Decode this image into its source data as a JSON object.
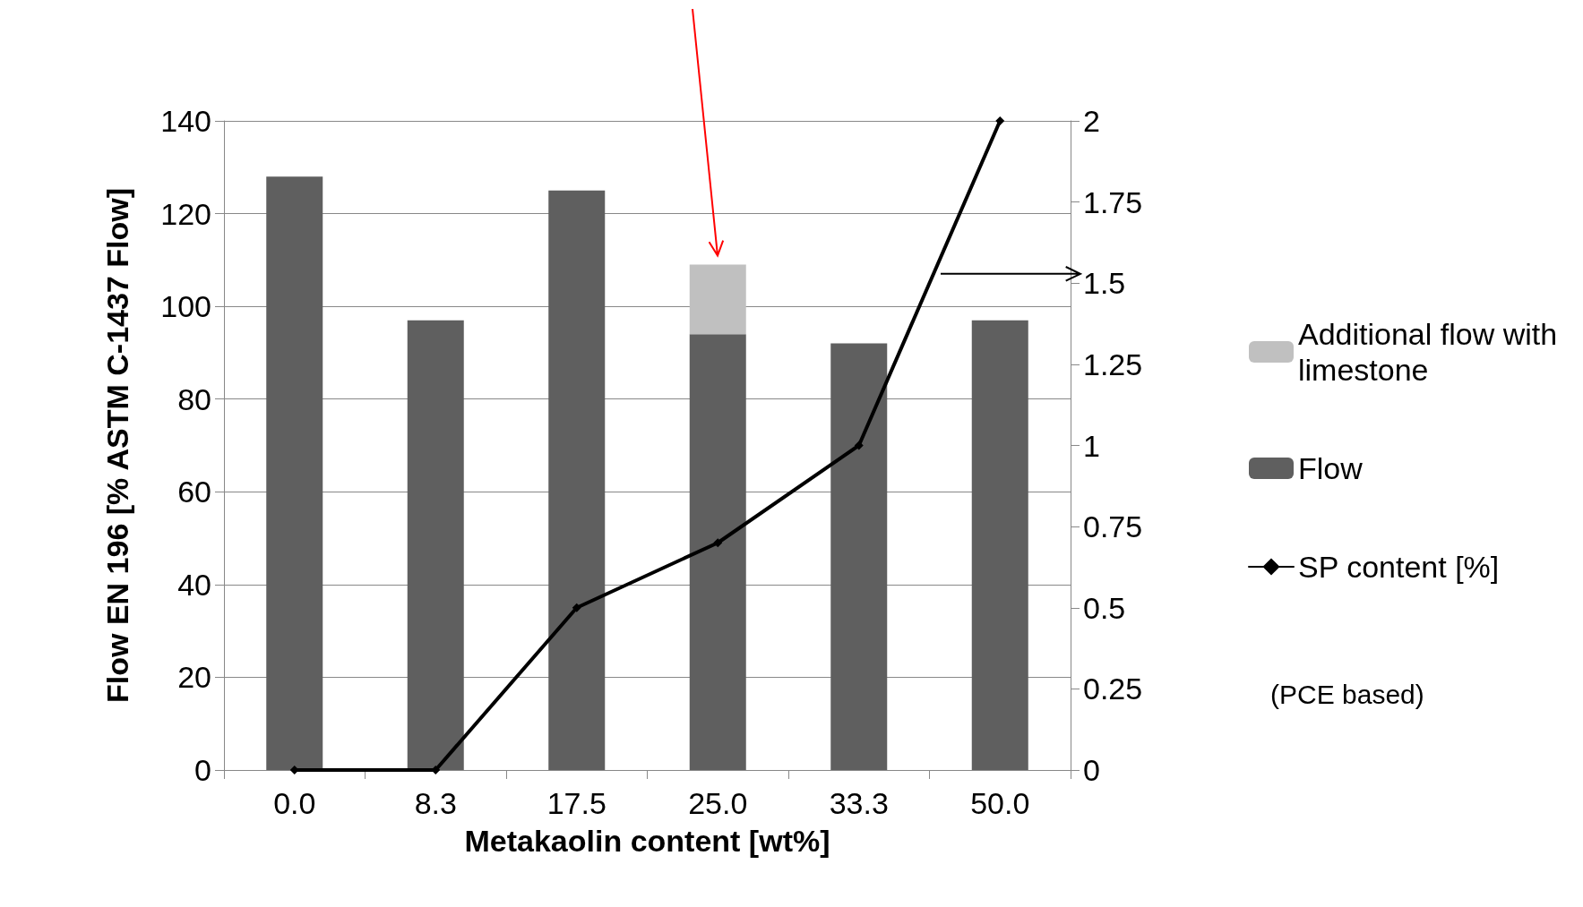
{
  "chart_data": {
    "type": "bar",
    "xlabel": "Metakaolin content [wt%]",
    "ylabel": "Flow EN 196 [% ASTM C-1437 Flow]",
    "categories": [
      "0.0",
      "8.3",
      "17.5",
      "25.0",
      "33.3",
      "50.0"
    ],
    "stacked": true,
    "series": [
      {
        "name": "Flow",
        "color": "#5f5f5f",
        "values": [
          128,
          97,
          125,
          94,
          92,
          97
        ]
      },
      {
        "name": "Additional flow with limestone",
        "color": "#c0c0c0",
        "values": [
          null,
          null,
          null,
          15,
          null,
          null
        ]
      },
      {
        "name": "SP content [%]",
        "type": "line",
        "axis": "y2",
        "color": "#000000",
        "marker": "diamond",
        "line_style": "solid",
        "values": [
          0,
          0,
          0.5,
          0.7,
          1,
          2
        ]
      }
    ],
    "ylim": [
      0,
      140
    ],
    "yticks": [
      0,
      20,
      40,
      60,
      80,
      100,
      120,
      140
    ],
    "y2lim": [
      0,
      2
    ],
    "y2ticks": [
      0,
      0.25,
      0.5,
      0.75,
      1,
      1.25,
      1.5,
      1.75,
      2
    ],
    "grid": "y",
    "legend": "right",
    "annotations": [
      "(PCE based)"
    ]
  }
}
